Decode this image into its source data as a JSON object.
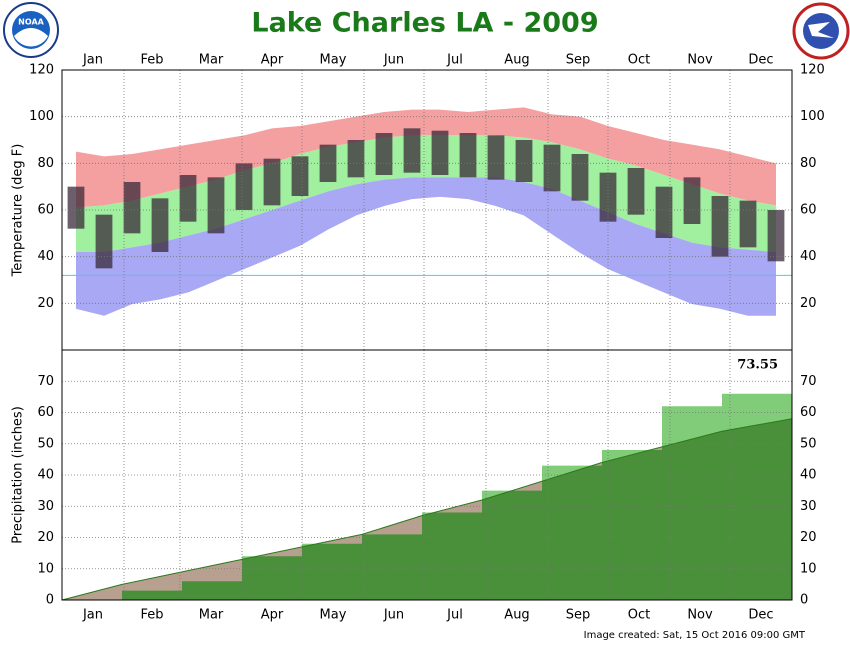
{
  "chart_data": [
    {
      "type": "temperature-bands",
      "title": "Lake Charles LA - 2009",
      "y_label": "Temperature (deg F)",
      "xlim": [
        0,
        365
      ],
      "xticks": [
        {
          "value": 0,
          "label": "Jan"
        },
        {
          "value": 31,
          "label": "Feb"
        },
        {
          "value": 59,
          "label": "Mar"
        },
        {
          "value": 90,
          "label": "Apr"
        },
        {
          "value": 120,
          "label": "May"
        },
        {
          "value": 151,
          "label": "Jun"
        },
        {
          "value": 181,
          "label": "Jul"
        },
        {
          "value": 212,
          "label": "Aug"
        },
        {
          "value": 243,
          "label": "Sep"
        },
        {
          "value": 273,
          "label": "Oct"
        },
        {
          "value": 304,
          "label": "Nov"
        },
        {
          "value": 334,
          "label": "Dec"
        }
      ],
      "ylim": [
        0,
        120
      ],
      "yticks": [
        20,
        40,
        60,
        80,
        100,
        120
      ],
      "grid": true,
      "x": [
        7,
        21,
        35,
        49,
        63,
        77,
        91,
        105,
        119,
        133,
        147,
        161,
        175,
        189,
        203,
        217,
        231,
        245,
        259,
        273,
        287,
        301,
        315,
        329,
        343,
        357
      ],
      "series": [
        {
          "color": "#f4a0a0",
          "values": [
            85,
            83,
            84,
            86,
            88,
            90,
            92,
            95,
            96,
            98,
            100,
            102,
            103,
            103,
            102,
            103,
            104,
            101,
            100,
            96,
            93,
            90,
            88,
            86,
            83,
            80
          ]
        },
        {
          "color": "#a0f0a0",
          "values": [
            61,
            62,
            64,
            67,
            70,
            73,
            77,
            80,
            84,
            87,
            89,
            91,
            92,
            92,
            92,
            92,
            91,
            89,
            86,
            82,
            79,
            75,
            71,
            67,
            64,
            62
          ]
        },
        {
          "color": "#a8a8f4",
          "values": [
            42,
            42,
            44,
            46,
            49,
            52,
            56,
            60,
            64,
            68,
            71,
            73,
            74,
            74,
            74,
            74,
            72,
            69,
            64,
            59,
            54,
            50,
            46,
            44,
            43,
            42
          ]
        },
        {
          "color": "#a8a8f4",
          "values": [
            18,
            15,
            20,
            22,
            25,
            30,
            35,
            40,
            45,
            52,
            58,
            62,
            65,
            66,
            65,
            62,
            58,
            50,
            42,
            35,
            30,
            25,
            20,
            18,
            15,
            15
          ]
        }
      ],
      "actual": {
        "color": "#3a2a3a",
        "high": [
          70,
          58,
          72,
          65,
          75,
          74,
          80,
          82,
          83,
          88,
          90,
          93,
          95,
          94,
          93,
          92,
          90,
          88,
          84,
          76,
          78,
          70,
          74,
          66,
          64,
          60
        ],
        "low": [
          52,
          35,
          50,
          42,
          55,
          50,
          60,
          62,
          66,
          72,
          74,
          75,
          76,
          75,
          74,
          73,
          72,
          68,
          64,
          55,
          58,
          48,
          54,
          40,
          44,
          38
        ]
      },
      "freezing_line": {
        "value": 32,
        "color": "#40d0e0"
      }
    },
    {
      "type": "precipitation",
      "y_label": "Precipitation (inches)",
      "xlim": [
        0,
        365
      ],
      "xticks": [
        {
          "value": 0,
          "label": "Jan"
        },
        {
          "value": 31,
          "label": "Feb"
        },
        {
          "value": 59,
          "label": "Mar"
        },
        {
          "value": 90,
          "label": "Apr"
        },
        {
          "value": 120,
          "label": "May"
        },
        {
          "value": 151,
          "label": "Jun"
        },
        {
          "value": 181,
          "label": "Jul"
        },
        {
          "value": 212,
          "label": "Aug"
        },
        {
          "value": 243,
          "label": "Sep"
        },
        {
          "value": 273,
          "label": "Oct"
        },
        {
          "value": 304,
          "label": "Nov"
        },
        {
          "value": 334,
          "label": "Dec"
        }
      ],
      "ylim": [
        0,
        80
      ],
      "yticks": [
        0,
        10,
        20,
        30,
        40,
        50,
        60,
        70
      ],
      "grid": true,
      "x": [
        0,
        30,
        60,
        90,
        120,
        150,
        180,
        210,
        240,
        270,
        300,
        330,
        365
      ],
      "series": [
        {
          "color": "#80cc78",
          "values": [
            0,
            3,
            6,
            14,
            18,
            21,
            28,
            35,
            43,
            48,
            62,
            66,
            73.55
          ]
        },
        {
          "color": "#b8a090",
          "values": [
            0,
            5,
            9,
            13,
            17,
            21,
            27,
            32,
            38,
            44,
            49,
            54,
            58
          ]
        }
      ],
      "overlap_color": "#4a8f3a",
      "annotation": "73.55",
      "footer": "Image created: Sat, 15 Oct 2016 09:00 GMT"
    }
  ],
  "logos": {
    "noaa": "NOAA"
  }
}
